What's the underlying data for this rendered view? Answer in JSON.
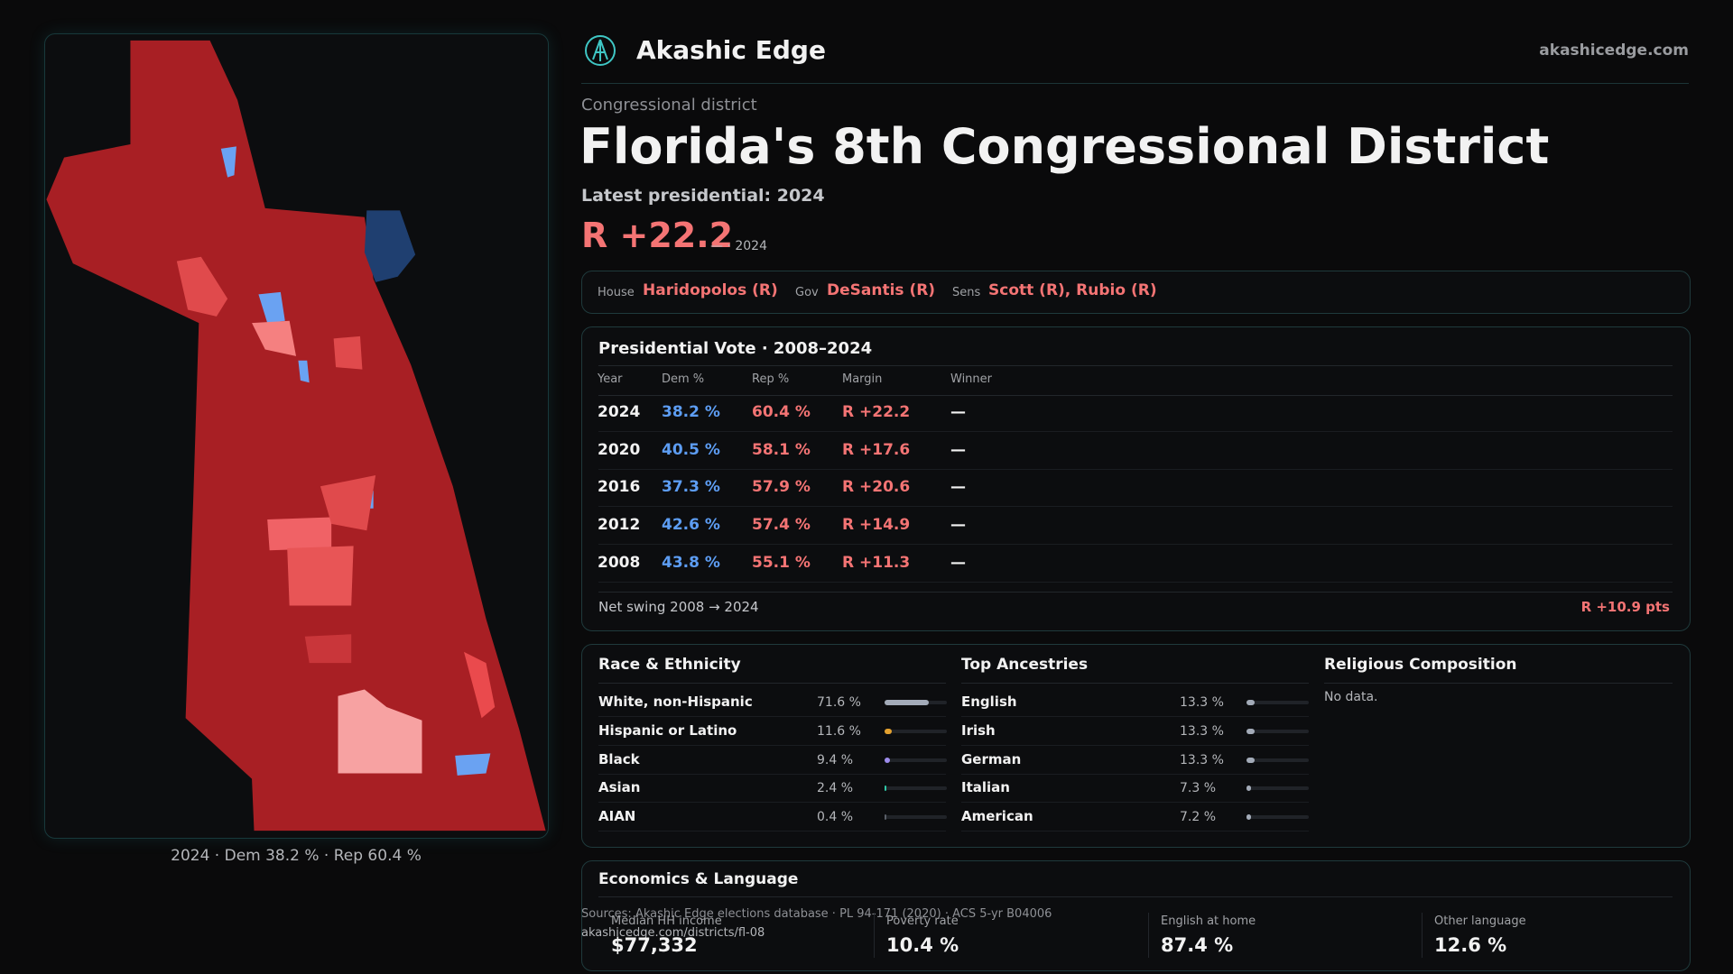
{
  "header": {
    "brand": "Akashic Edge",
    "site": "akashicedge.com"
  },
  "district": {
    "kicker": "Congressional district",
    "title": "Florida's 8th Congressional District",
    "latest": "Latest presidential: 2024",
    "margin": "R +22.2",
    "margin_note": "— · 2024"
  },
  "officials": [
    {
      "role": "House",
      "name": "Haridopolos (R)"
    },
    {
      "role": "Gov",
      "name": "DeSantis (R)"
    },
    {
      "role": "Sens",
      "name": "Scott (R), Rubio (R)"
    }
  ],
  "presidential": {
    "title": "Presidential Vote · 2008–2024",
    "columns": [
      "Year",
      "Dem %",
      "Rep %",
      "Margin",
      "Winner"
    ],
    "rows": [
      [
        "2024",
        "38.2 %",
        "60.4 %",
        "R +22.2",
        "—"
      ],
      [
        "2020",
        "40.5 %",
        "58.1 %",
        "R +17.6",
        "—"
      ],
      [
        "2016",
        "37.3 %",
        "57.9 %",
        "R +20.6",
        "—"
      ],
      [
        "2012",
        "42.6 %",
        "57.4 %",
        "R +14.9",
        "—"
      ],
      [
        "2008",
        "43.8 %",
        "55.1 %",
        "R +11.3",
        "—"
      ]
    ],
    "swing_label": "Net swing 2008 → 2024",
    "swing": "R +10.9 pts"
  },
  "race": {
    "title": "Race & Ethnicity",
    "rows": [
      {
        "name": "White, non-Hispanic",
        "share": {
          "value": 71.6,
          "label": "71.6 %"
        },
        "color": "#a3abb8"
      },
      {
        "name": "Hispanic or Latino",
        "share": {
          "value": 11.6,
          "label": "11.6 %"
        },
        "color": "#e3a12f"
      },
      {
        "name": "Black",
        "share": {
          "value": 9.4,
          "label": "9.4 %"
        },
        "color": "#9d8cec"
      },
      {
        "name": "Asian",
        "share": {
          "value": 2.4,
          "label": "2.4 %"
        },
        "color": "#2fc7a6"
      },
      {
        "name": "AIAN",
        "share": {
          "value": 0.4,
          "label": "0.4 %"
        },
        "color": "#5a5f68"
      }
    ]
  },
  "ancestries": {
    "title": "Top Ancestries",
    "rows": [
      {
        "name": "English",
        "share": {
          "value": 13.3,
          "label": "13.3 %"
        },
        "color": "#a3abb8"
      },
      {
        "name": "Irish",
        "share": {
          "value": 13.3,
          "label": "13.3 %"
        },
        "color": "#a3abb8"
      },
      {
        "name": "German",
        "share": {
          "value": 13.3,
          "label": "13.3 %"
        },
        "color": "#a3abb8"
      },
      {
        "name": "Italian",
        "share": {
          "value": 7.3,
          "label": "7.3 %"
        },
        "color": "#a3abb8"
      },
      {
        "name": "American",
        "share": {
          "value": 7.2,
          "label": "7.2 %"
        },
        "color": "#a3abb8"
      }
    ]
  },
  "religion": {
    "title": "Religious Composition",
    "note": "No data."
  },
  "economics": {
    "title": "Economics & Language",
    "stats": [
      {
        "label": "Median HH income",
        "value": "$77,332"
      },
      {
        "label": "Poverty rate",
        "value": "10.4 %"
      },
      {
        "label": "English at home",
        "value": "87.4 %"
      },
      {
        "label": "Other language",
        "value": "12.6 %"
      }
    ]
  },
  "map": {
    "caption": "2024 · Dem 38.2 % · Rep 60.4 %"
  },
  "footer": {
    "sources": "Sources: Akashic Edge elections database · PL 94-171 (2020) · ACS 5-yr B04006",
    "url": "akashicedge.com/districts/fl-08"
  }
}
